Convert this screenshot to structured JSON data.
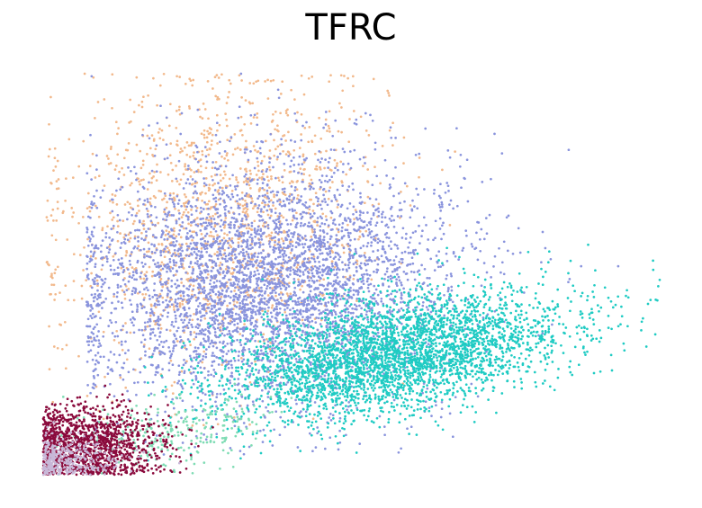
{
  "chart_data": {
    "type": "scatter",
    "title": "TFRC",
    "xlabel": "",
    "ylabel": "",
    "axes_visible": false,
    "grid": false,
    "legend": "none",
    "xlim": [
      0,
      1
    ],
    "ylim": [
      0,
      1
    ],
    "series": [
      {
        "color": "#f2b98c",
        "points": 1400,
        "seed": 11,
        "cloud": {
          "cx": 0.28,
          "cy": 0.63,
          "sx": 0.13,
          "sy": 0.18,
          "corr": 0.15
        },
        "min_x": 0.005,
        "min_y": 0.12,
        "outliers": [
          [
            0.16,
            0.93
          ],
          [
            0.22,
            0.91
          ],
          [
            0.08,
            0.8
          ],
          [
            0.12,
            0.85
          ],
          [
            0.37,
            0.88
          ],
          [
            0.05,
            0.55
          ],
          [
            0.02,
            0.45
          ],
          [
            0.44,
            0.8
          ]
        ]
      },
      {
        "color": "#8a94dd",
        "points": 4200,
        "seed": 23,
        "cloud": {
          "cx": 0.36,
          "cy": 0.47,
          "sx": 0.15,
          "sy": 0.15,
          "corr": 0.05
        },
        "min_x": 0.07,
        "min_y": 0.05,
        "outliers": [
          [
            0.32,
            1.0
          ],
          [
            0.38,
            0.96
          ],
          [
            0.42,
            0.87
          ],
          [
            0.57,
            0.84
          ],
          [
            0.73,
            0.85
          ],
          [
            0.85,
            0.81
          ],
          [
            0.71,
            0.73
          ],
          [
            0.67,
            0.67
          ],
          [
            0.87,
            0.52
          ],
          [
            0.93,
            0.52
          ],
          [
            0.48,
            0.08
          ],
          [
            0.26,
            0.1
          ],
          [
            0.19,
            0.92
          ],
          [
            0.25,
            0.91
          ]
        ]
      },
      {
        "color": "#1fcbc3",
        "points": 3500,
        "seed": 37,
        "cloud": {
          "cx": 0.57,
          "cy": 0.3,
          "sx": 0.14,
          "sy": 0.08,
          "corr": 0.45
        },
        "min_x": 0.16,
        "min_y": 0.02,
        "outliers": [
          [
            0.99,
            0.35
          ],
          [
            0.94,
            0.31
          ],
          [
            0.92,
            0.26
          ],
          [
            0.82,
            0.22
          ],
          [
            0.6,
            0.16
          ],
          [
            0.9,
            0.36
          ],
          [
            0.97,
            0.39
          ]
        ]
      },
      {
        "color": "#7fdcb4",
        "points": 260,
        "seed": 41,
        "cloud": {
          "cx": 0.22,
          "cy": 0.1,
          "sx": 0.08,
          "sy": 0.05,
          "corr": 0.3
        },
        "min_x": 0.02,
        "min_y": 0.0,
        "outliers": []
      },
      {
        "color": "#8a0a3c",
        "points": 1400,
        "seed": 53,
        "cloud": {
          "cx": 0.07,
          "cy": 0.07,
          "sx": 0.06,
          "sy": 0.05,
          "corr": 0.0
        },
        "min_x": 0.0,
        "min_y": 0.0,
        "outliers": []
      },
      {
        "color": "#c8b8d8",
        "points": 350,
        "seed": 67,
        "cloud": {
          "cx": 0.035,
          "cy": 0.035,
          "sx": 0.045,
          "sy": 0.03,
          "corr": 0.0
        },
        "min_x": 0.0,
        "min_y": 0.0,
        "outliers": []
      }
    ]
  }
}
